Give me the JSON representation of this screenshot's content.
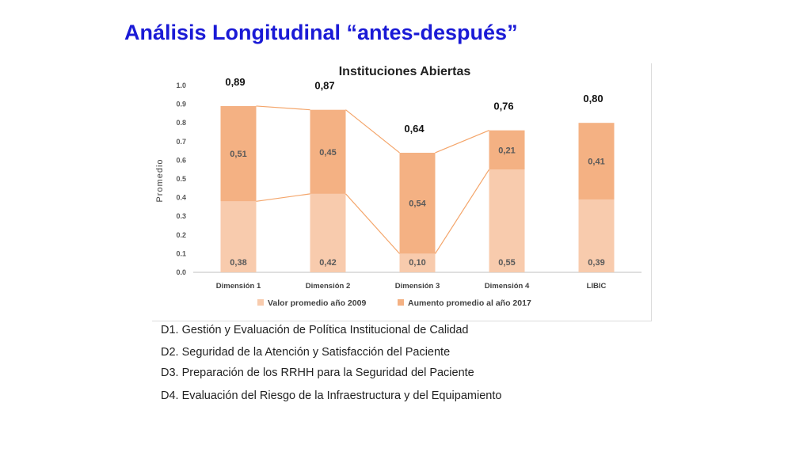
{
  "slide": {
    "title": "Análisis Longitudinal “antes-después”",
    "notes": [
      "D1. Gestión y Evaluación de Política Institucional de Calidad",
      "D2. Seguridad de la Atención y Satisfacción del Paciente",
      "D3. Preparación de los RRHH para la Seguridad del Paciente",
      "D4. Evaluación del Riesgo de la Infraestructura y del Equipamiento"
    ]
  },
  "chart_data": {
    "type": "bar",
    "stacked": true,
    "title": "Instituciones Abiertas",
    "xlabel": "",
    "ylabel": "Promedio",
    "ylim": [
      0,
      1.0
    ],
    "yticks": [
      "0.0",
      "0.1",
      "0.2",
      "0.3",
      "0.4",
      "0.5",
      "0.6",
      "0.7",
      "0.8",
      "0.9",
      "1.0"
    ],
    "categories": [
      "Dimensión 1",
      "Dimensión 2",
      "Dimensión 3",
      "Dimensión 4",
      "LIBIC"
    ],
    "series": [
      {
        "name": "Valor promedio año 2009",
        "values": [
          0.38,
          0.42,
          0.1,
          0.55,
          0.39
        ],
        "labels": [
          "0,38",
          "0,42",
          "0,10",
          "0,55",
          "0,39"
        ],
        "color": "#f8cbad"
      },
      {
        "name": "Aumento promedio al año 2017",
        "values": [
          0.51,
          0.45,
          0.54,
          0.21,
          0.41
        ],
        "labels": [
          "0,51",
          "0,45",
          "0,54",
          "0,21",
          "0,41"
        ],
        "color": "#f4b183"
      }
    ],
    "totals": [
      0.89,
      0.87,
      0.64,
      0.76,
      0.8
    ],
    "total_labels": [
      "0,89",
      "0,87",
      "0,64",
      "0,76",
      "0,80"
    ],
    "connector_lines": "Dimensión 1 to Dimensión 4",
    "connector_color": "#f4a56a",
    "legend_position": "bottom",
    "grid": false
  }
}
